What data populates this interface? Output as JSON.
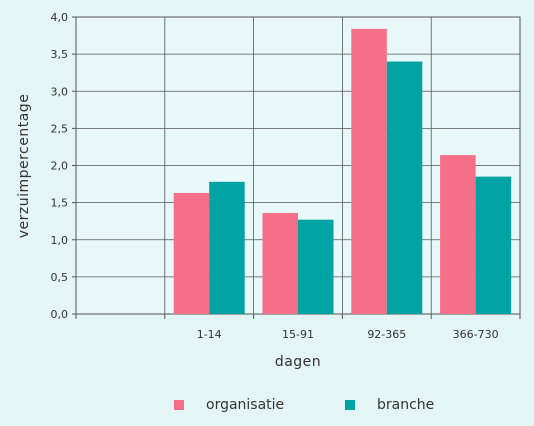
{
  "chart_data": {
    "type": "bar",
    "categories": [
      "1-14",
      "15-91",
      "92-365",
      "366-730"
    ],
    "series": [
      {
        "name": "organisatie",
        "values": [
          1.63,
          1.36,
          3.84,
          2.14
        ],
        "color": "#f56f88"
      },
      {
        "name": "branche",
        "values": [
          1.78,
          1.27,
          3.4,
          1.85
        ],
        "color": "#00a3a3"
      }
    ],
    "xlabel": "dagen",
    "ylabel": "verzuimpercentage",
    "ylim": [
      0,
      4.0
    ],
    "yticks": [
      "0,0",
      "0,5",
      "1,0",
      "1,5",
      "2,0",
      "2,5",
      "3,0",
      "3,5",
      "4,0"
    ],
    "grid": true,
    "legend_position": "bottom"
  }
}
